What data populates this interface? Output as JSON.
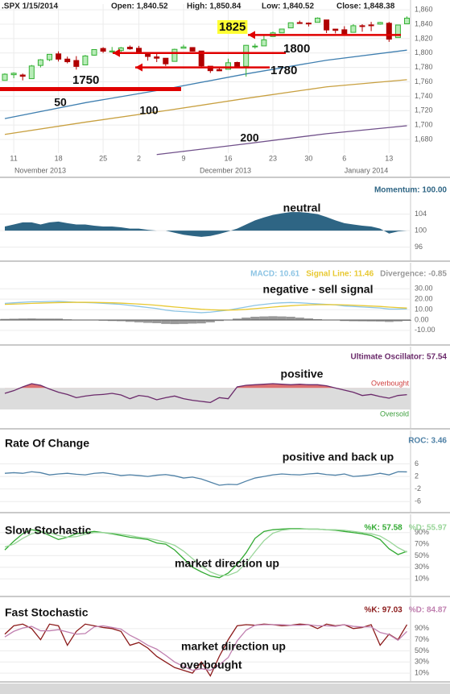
{
  "chart_data": [
    {
      "type": "candlestick",
      "title": ".SPX 1/15/2014",
      "quote": [
        "Open: 1,840.52",
        "High: 1,850.84",
        "Low: 1,840.52",
        "Close: 1,848.38"
      ],
      "categories": [
        null,
        "11",
        null,
        null,
        null,
        null,
        "18",
        null,
        null,
        null,
        null,
        "25",
        null,
        null,
        null,
        "2",
        null,
        null,
        null,
        null,
        "9",
        null,
        null,
        null,
        null,
        "16",
        null,
        null,
        null,
        null,
        "23",
        null,
        null,
        null,
        "30",
        null,
        null,
        null,
        "6",
        null,
        null,
        null,
        null,
        "13",
        null,
        null
      ],
      "months": [
        "November 2013",
        "December 2013",
        "January 2014"
      ],
      "open": [
        1762.0,
        1769.9,
        1769.5,
        1764.4,
        1782.8,
        1790.7,
        1798.8,
        1791.6,
        1789.6,
        1783.5,
        1797.0,
        1806.3,
        1801.6,
        1803.5,
        1808.1,
        1806.6,
        1800.1,
        1794.6,
        1792.8,
        1788.4,
        1806.6,
        1807.6,
        1802.8,
        1781.7,
        1777.0,
        1777.4,
        1786.9,
        1781.5,
        1809.0,
        1809.9,
        1822.9,
        1828.0,
        1834.9,
        1842.2,
        1841.5,
        1842.6,
        1845.9,
        1833.2,
        1832.3,
        1828.7,
        1837.9,
        1839.0,
        1840.1,
        1841.3,
        1821.4,
        1840.52
      ],
      "high": [
        1771.8,
        1773.1,
        1771.5,
        1783.4,
        1791.5,
        1798.2,
        1802.3,
        1795.0,
        1795.7,
        1797.2,
        1805.1,
        1808.1,
        1808.4,
        1808.4,
        1810.5,
        1810.0,
        1800.1,
        1800.0,
        1792.8,
        1806.0,
        1811.5,
        1808.0,
        1802.8,
        1781.7,
        1779.9,
        1792.2,
        1788.0,
        1811.1,
        1813.0,
        1823.8,
        1829.8,
        1833.3,
        1842.3,
        1844.9,
        1842.5,
        1849.4,
        1845.9,
        1833.2,
        1837.2,
        1840.1,
        1840.0,
        1843.2,
        1843.2,
        1843.2,
        1839.3,
        1850.84
      ],
      "low": [
        1761.6,
        1765.0,
        1762.0,
        1764.4,
        1780.0,
        1788.9,
        1788.2,
        1785.6,
        1777.0,
        1783.5,
        1796.2,
        1800.1,
        1800.2,
        1800.9,
        1804.6,
        1799.6,
        1789.4,
        1787.4,
        1782.0,
        1788.4,
        1806.6,
        1802.0,
        1780.9,
        1772.3,
        1775.0,
        1777.4,
        1780.0,
        1767.2,
        1806.0,
        1809.9,
        1822.9,
        1827.7,
        1834.9,
        1840.9,
        1836.8,
        1842.6,
        1827.7,
        1827.2,
        1826.3,
        1828.7,
        1829.5,
        1830.4,
        1839.3,
        1815.5,
        1821.4,
        1840.52
      ],
      "close": [
        1770.6,
        1771.9,
        1767.7,
        1782.0,
        1790.6,
        1798.2,
        1791.5,
        1787.9,
        1781.4,
        1795.9,
        1804.8,
        1802.5,
        1802.8,
        1807.2,
        1805.8,
        1800.9,
        1795.2,
        1792.8,
        1785.0,
        1805.1,
        1808.4,
        1802.6,
        1782.2,
        1775.5,
        1775.3,
        1786.5,
        1781.0,
        1810.7,
        1809.6,
        1818.3,
        1828.0,
        1833.3,
        1842.0,
        1841.4,
        1841.1,
        1848.4,
        1832.0,
        1831.4,
        1826.8,
        1837.9,
        1837.5,
        1838.1,
        1842.4,
        1819.2,
        1838.9,
        1848.38
      ],
      "up_color": "#33b033",
      "down_color": "#b00000",
      "series": [
        {
          "name": "50",
          "color": "#3f7fb0",
          "x": [
            0,
            9,
            18,
            27,
            36,
            45
          ],
          "values": [
            1709,
            1731,
            1750,
            1771,
            1790,
            1804
          ]
        },
        {
          "name": "100",
          "color": "#c8a040",
          "x": [
            0,
            9,
            18,
            27,
            36,
            45
          ],
          "values": [
            1687,
            1704,
            1720,
            1737,
            1753,
            1763
          ]
        },
        {
          "name": "200",
          "color": "#70508a",
          "x": [
            17,
            27,
            36,
            45
          ],
          "values": [
            1659,
            1674,
            1688,
            1699
          ]
        }
      ],
      "levels": [
        {
          "label": "1825",
          "value": 1825,
          "highlight": "#ffff33"
        },
        {
          "label": "1800",
          "value": 1800
        },
        {
          "label": "1780",
          "value": 1780
        },
        {
          "label": "1750",
          "value": 1750
        }
      ],
      "level_color": "#e00000",
      "ylim": [
        1661,
        1868
      ],
      "yticks": [
        {
          "value": 1680,
          "label": "1,680"
        },
        {
          "value": 1700,
          "label": "1,700"
        },
        {
          "value": 1720,
          "label": "1,720"
        },
        {
          "value": 1740,
          "label": "1,740"
        },
        {
          "value": 1760,
          "label": "1,760"
        },
        {
          "value": 1780,
          "label": "1,780"
        },
        {
          "value": 1800,
          "label": "1,800"
        },
        {
          "value": 1820,
          "label": "1,820"
        },
        {
          "value": 1840,
          "label": "1,840"
        },
        {
          "value": 1860,
          "label": "1,860"
        }
      ],
      "grid": true
    },
    {
      "type": "line",
      "baseline": 100,
      "series": [
        {
          "name": "Momentum: 100.00",
          "color": "#2e6584",
          "style": "area",
          "values": [
            101,
            101.5,
            102,
            102,
            101.5,
            102,
            102.2,
            101.8,
            101.5,
            101.5,
            101.2,
            101,
            101,
            100.8,
            100.5,
            100.5,
            100.2,
            100,
            100,
            99.5,
            99,
            98.7,
            98.5,
            98.7,
            99.2,
            99.8,
            100.5,
            101.5,
            102.5,
            103.2,
            103.8,
            104.2,
            104.5,
            104.5,
            104.3,
            104,
            103.3,
            102.5,
            101.8,
            101.5,
            101.2,
            101,
            100.5,
            99.3,
            99.8,
            100
          ]
        }
      ],
      "annotations": [
        "neutral"
      ],
      "ylim": [
        93,
        109
      ],
      "yticks": [
        96,
        100,
        104
      ],
      "grid": true
    },
    {
      "type": "line",
      "series": [
        {
          "name": "MACD: 10.61",
          "color": "#8cc4e4",
          "style": "line",
          "values": [
            16,
            16.5,
            17,
            17.5,
            17.5,
            17.8,
            18,
            17.5,
            17,
            16.8,
            16.5,
            16,
            15.5,
            15,
            14,
            13,
            12,
            11,
            9.5,
            8.5,
            8,
            7.5,
            7,
            7.5,
            8.5,
            9.5,
            11,
            12.5,
            14,
            15,
            16,
            16.5,
            16.8,
            16.5,
            16,
            15.5,
            15,
            14.5,
            13.5,
            13,
            12.5,
            12,
            11.5,
            10.5,
            10.5,
            10.61
          ]
        },
        {
          "name": "Signal Line: 11.46",
          "color": "#e8c830",
          "style": "line",
          "values": [
            15,
            15.3,
            15.6,
            16,
            16.2,
            16.5,
            16.7,
            16.9,
            17,
            17,
            16.9,
            16.7,
            16.5,
            16.2,
            15.8,
            15.3,
            14.8,
            14.1,
            13.3,
            12.5,
            11.8,
            11,
            10.3,
            9.8,
            9.5,
            9.5,
            9.7,
            10.2,
            10.9,
            11.6,
            12.4,
            13.1,
            13.7,
            14.2,
            14.5,
            14.7,
            14.8,
            14.7,
            14.5,
            14.2,
            13.8,
            13.4,
            13,
            12.4,
            11.9,
            11.46
          ]
        },
        {
          "name": "Divergence: -0.85",
          "color": "#999999",
          "style": "bar",
          "values": [
            1,
            1.2,
            1.4,
            1.5,
            1.3,
            1.3,
            1.3,
            0.6,
            0,
            -0.2,
            -0.4,
            -0.7,
            -1,
            -1.2,
            -1.8,
            -2.3,
            -2.8,
            -3.1,
            -3.8,
            -4,
            -3.8,
            -3.5,
            -3.3,
            -2.3,
            -1,
            0,
            1.3,
            2.3,
            3.1,
            3.4,
            3.6,
            3.4,
            3.1,
            2.3,
            1.5,
            0.8,
            0.2,
            -0.2,
            -1,
            -1.2,
            -1.3,
            -1.4,
            -1.5,
            -1.9,
            -1.4,
            -0.85
          ]
        }
      ],
      "annotations": [
        "negative - sell signal"
      ],
      "ylim": [
        -21,
        38
      ],
      "yticks": [
        {
          "value": -10,
          "label": "-10.00"
        },
        {
          "value": 0,
          "label": "0.00"
        },
        {
          "value": 10,
          "label": "10.00"
        },
        {
          "value": 20,
          "label": "20.00"
        },
        {
          "value": 30,
          "label": "30.00"
        }
      ],
      "grid": true
    },
    {
      "type": "line",
      "bands": {
        "overbought": {
          "value": 70,
          "label": "Overbought",
          "color": "#d04040"
        },
        "oversold": {
          "value": 30,
          "label": "Oversold",
          "color": "#40a040"
        },
        "fill": "#dcdcdc"
      },
      "series": [
        {
          "name": "Ultimate Oscillator: 57.54",
          "color": "#6b2a6b",
          "style": "line",
          "values": [
            60,
            65,
            72,
            78,
            75,
            68,
            62,
            58,
            52,
            55,
            57,
            58,
            60,
            57,
            50,
            56,
            54,
            48,
            52,
            55,
            50,
            47,
            45,
            43,
            52,
            50,
            72,
            75,
            76,
            77,
            78,
            77,
            76,
            77,
            76,
            76,
            74,
            70,
            66,
            62,
            56,
            58,
            54,
            51,
            56,
            57.54
          ]
        }
      ],
      "annotations": [
        "positive"
      ],
      "ylim": [
        0,
        120
      ],
      "grid": false
    },
    {
      "type": "line",
      "title": "Rate Of Change",
      "series": [
        {
          "name": "ROC: 3.46",
          "color": "#4f81a6",
          "style": "line",
          "values": [
            3,
            3.2,
            3,
            3.5,
            3.2,
            2.5,
            2.8,
            3,
            2.7,
            2.5,
            3,
            3.2,
            2.8,
            2.3,
            2.5,
            2.3,
            2,
            2.4,
            2.6,
            2.2,
            1.5,
            1.8,
            1.2,
            0.2,
            -0.8,
            -0.5,
            -0.6,
            0.5,
            1.5,
            2,
            2.5,
            2.8,
            2.6,
            2.5,
            2.8,
            3,
            2.6,
            2.4,
            2.8,
            2,
            2.2,
            2.5,
            3,
            2.5,
            3.5,
            3.46
          ]
        }
      ],
      "annotations": [
        "positive and back up"
      ],
      "ylim": [
        -8.5,
        10.5
      ],
      "yticks": [
        -6,
        -2,
        2,
        6
      ],
      "grid": true
    },
    {
      "type": "line",
      "title": "Slow Stochastic",
      "series": [
        {
          "name": "%K: 57.58",
          "color": "#33aa33",
          "style": "line",
          "values": [
            60,
            75,
            88,
            95,
            92,
            85,
            78,
            82,
            88,
            90,
            92,
            90,
            88,
            85,
            82,
            80,
            78,
            72,
            70,
            60,
            45,
            30,
            22,
            15,
            12,
            20,
            35,
            55,
            80,
            92,
            95,
            96,
            97,
            97,
            96,
            96,
            95,
            94,
            92,
            90,
            88,
            85,
            78,
            62,
            52,
            57.58
          ]
        },
        {
          "name": "%D: 55.97",
          "color": "#99d699",
          "style": "line",
          "values": [
            65,
            70,
            80,
            88,
            92,
            90,
            85,
            82,
            83,
            87,
            90,
            90,
            89,
            87,
            85,
            82,
            80,
            77,
            73,
            68,
            58,
            45,
            32,
            22,
            16,
            16,
            22,
            37,
            57,
            76,
            89,
            94,
            96,
            96,
            96,
            96,
            95,
            95,
            94,
            92,
            90,
            88,
            84,
            75,
            64,
            55.97
          ]
        }
      ],
      "annotations": [
        "market direction up"
      ],
      "ylim": [
        -15,
        105
      ],
      "yticks": [
        {
          "value": 10,
          "label": "10%"
        },
        {
          "value": 30,
          "label": "30%"
        },
        {
          "value": 50,
          "label": "50%"
        },
        {
          "value": 70,
          "label": "70%"
        },
        {
          "value": 90,
          "label": "90%"
        }
      ],
      "grid": true
    },
    {
      "type": "line",
      "title": "Fast Stochastic",
      "series": [
        {
          "name": "%K: 97.03",
          "color": "#8b1a1a",
          "style": "line",
          "values": [
            80,
            95,
            98,
            90,
            70,
            98,
            95,
            60,
            85,
            98,
            95,
            92,
            90,
            85,
            60,
            65,
            55,
            40,
            30,
            20,
            15,
            10,
            30,
            5,
            40,
            70,
            95,
            97,
            96,
            98,
            97,
            95,
            96,
            98,
            97,
            90,
            98,
            95,
            97,
            90,
            92,
            97,
            60,
            80,
            70,
            97.03
          ]
        },
        {
          "name": "%D: 84.87",
          "color": "#c080b0",
          "style": "line",
          "values": [
            75,
            85,
            91,
            94,
            86,
            86,
            88,
            84,
            80,
            81,
            93,
            95,
            92,
            89,
            78,
            70,
            60,
            53,
            42,
            30,
            22,
            15,
            18,
            15,
            25,
            38,
            68,
            87,
            96,
            97,
            97,
            97,
            96,
            96,
            97,
            95,
            95,
            94,
            97,
            94,
            93,
            93,
            83,
            79,
            69,
            84.87
          ]
        }
      ],
      "annotations": [
        "market direction up",
        "overbought"
      ],
      "ylim": [
        0,
        110
      ],
      "yticks": [
        {
          "value": 10,
          "label": "10%"
        },
        {
          "value": 30,
          "label": "30%"
        },
        {
          "value": 50,
          "label": "50%"
        },
        {
          "value": 70,
          "label": "70%"
        },
        {
          "value": 90,
          "label": "90%"
        }
      ],
      "grid": true
    }
  ]
}
